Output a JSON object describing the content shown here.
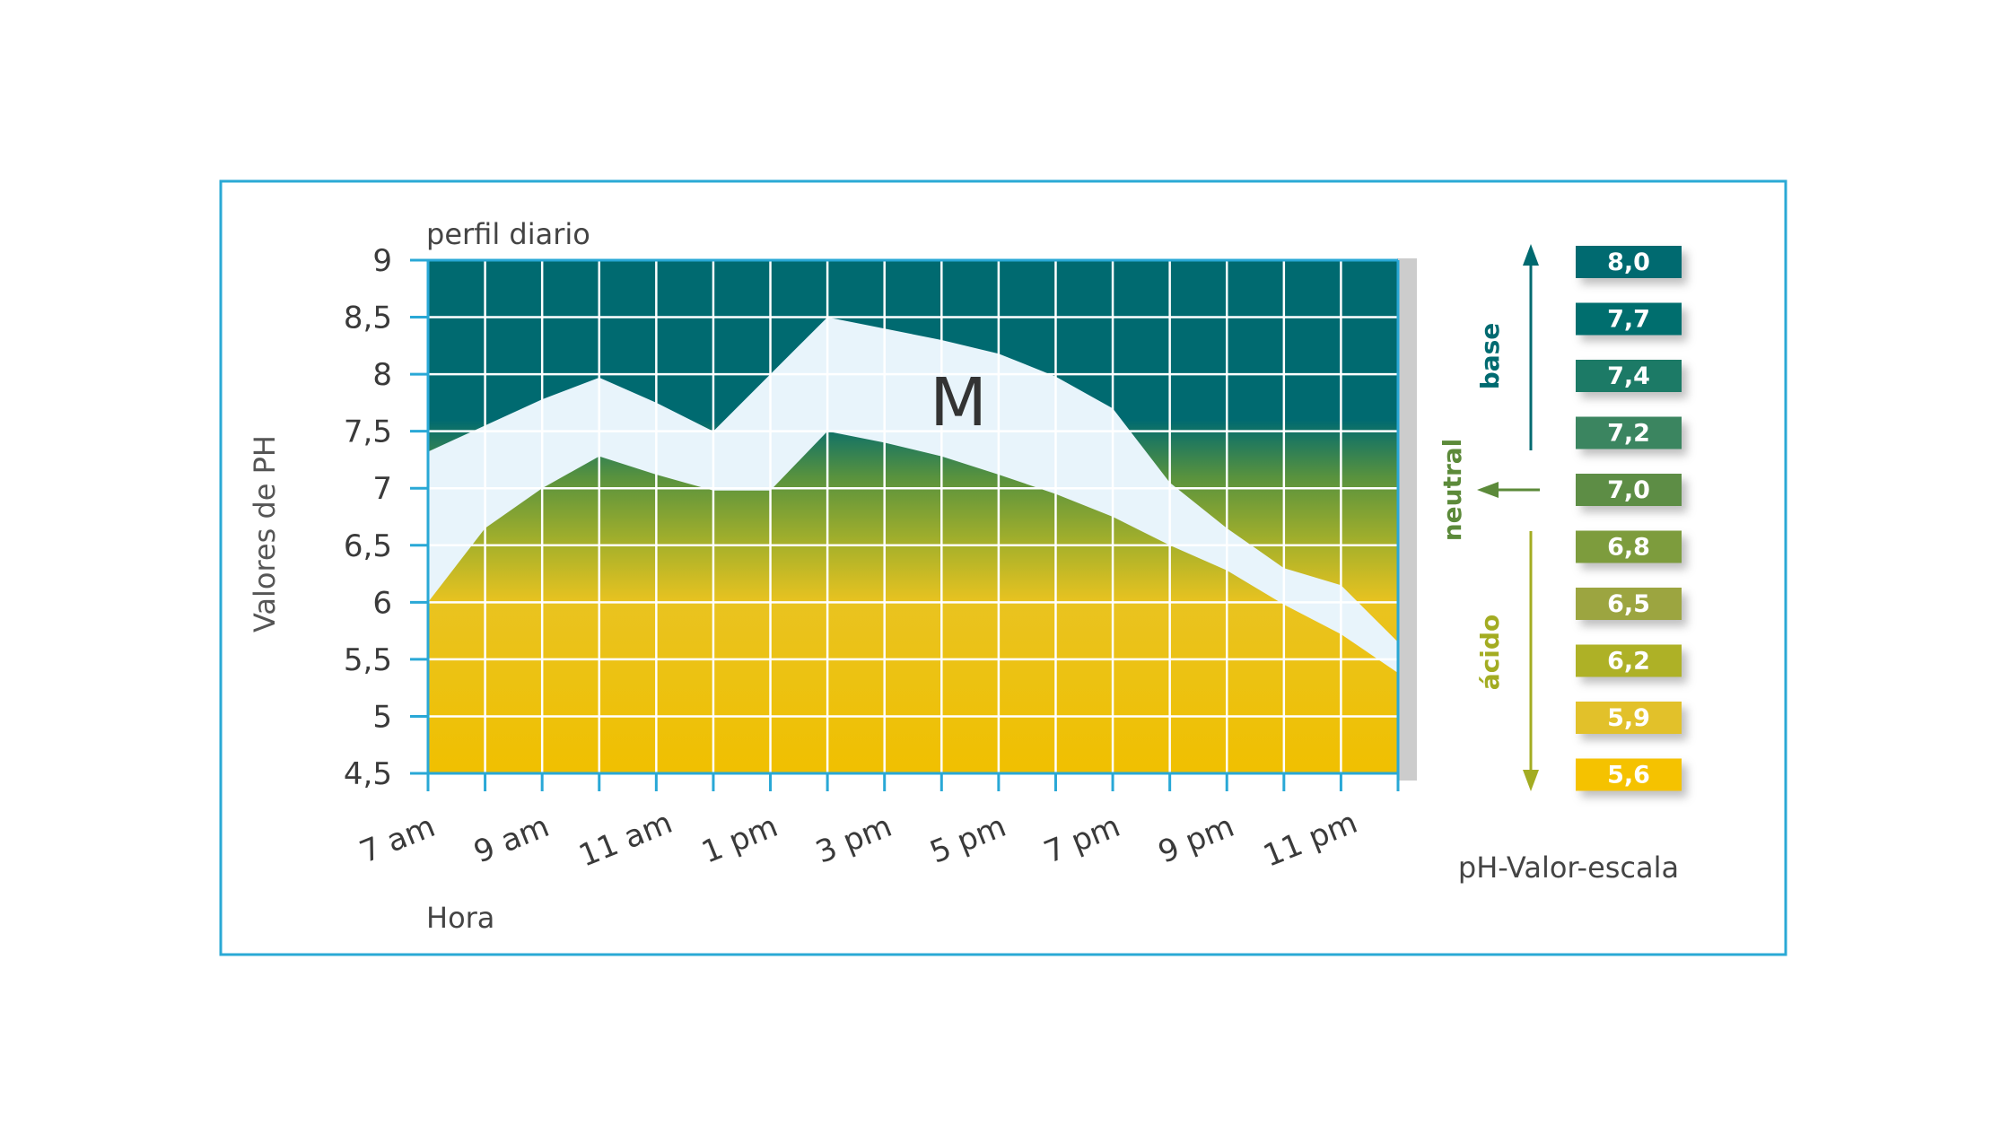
{
  "chart_data": {
    "type": "area",
    "title": "perfil diario",
    "xlabel": "Hora",
    "ylabel": "Valores de PH",
    "ylim": [
      4.5,
      9
    ],
    "yticks": [
      {
        "value": 9,
        "label": "9"
      },
      {
        "value": 8.5,
        "label": "8,5"
      },
      {
        "value": 8,
        "label": "8"
      },
      {
        "value": 7.5,
        "label": "7,5"
      },
      {
        "value": 7,
        "label": "7"
      },
      {
        "value": 6.5,
        "label": "6,5"
      },
      {
        "value": 6,
        "label": "6"
      },
      {
        "value": 5.5,
        "label": "5,5"
      },
      {
        "value": 5,
        "label": "5"
      },
      {
        "value": 4.5,
        "label": "4,5"
      }
    ],
    "x_hours": [
      7,
      8,
      9,
      10,
      11,
      12,
      13,
      14,
      15,
      16,
      17,
      18,
      19,
      20,
      21,
      22,
      23,
      24
    ],
    "xticks": [
      {
        "hour": 7,
        "label": "7 am"
      },
      {
        "hour": 9,
        "label": "9 am"
      },
      {
        "hour": 11,
        "label": "11 am"
      },
      {
        "hour": 13,
        "label": "1 pm"
      },
      {
        "hour": 15,
        "label": "3 pm"
      },
      {
        "hour": 17,
        "label": "5 pm"
      },
      {
        "hour": 19,
        "label": "7 pm"
      },
      {
        "hour": 21,
        "label": "9 pm"
      },
      {
        "hour": 23,
        "label": "11 pm"
      }
    ],
    "band_label": "M",
    "band_upper": [
      7.32,
      7.55,
      7.78,
      7.97,
      7.75,
      7.5,
      8.0,
      8.5,
      8.4,
      8.3,
      8.18,
      7.98,
      7.7,
      7.05,
      6.65,
      6.3,
      6.15,
      5.65
    ],
    "band_lower": [
      6.0,
      6.65,
      7.0,
      7.28,
      7.12,
      6.98,
      6.98,
      7.5,
      7.4,
      7.28,
      7.12,
      6.95,
      6.75,
      6.5,
      6.28,
      5.98,
      5.72,
      5.38
    ],
    "background_gradient": [
      {
        "value": 9,
        "color": "#006a70"
      },
      {
        "value": 7.6,
        "color": "#006a70"
      },
      {
        "value": 7.1,
        "color": "#58923e"
      },
      {
        "value": 6.5,
        "color": "#a8b12a"
      },
      {
        "value": 6.0,
        "color": "#e9c320"
      },
      {
        "value": 4.5,
        "color": "#f0c000"
      }
    ],
    "band_color": "#e8f4fb",
    "grid_color": "#ffffff",
    "axis_color": "#29a8d6",
    "grid": true
  },
  "scale": {
    "title": "pH-Valor-escala",
    "label_base": "base",
    "label_neutral": "neutral",
    "label_acid": "ácido",
    "base_color": "#006a70",
    "neutral_color": "#5c8a3a",
    "acid_color": "#a3ac22",
    "items": [
      {
        "label": "8,0",
        "color": "#006a70"
      },
      {
        "label": "7,7",
        "color": "#006e6e"
      },
      {
        "label": "7,4",
        "color": "#1c7a66"
      },
      {
        "label": "7,2",
        "color": "#3a8560"
      },
      {
        "label": "7,0",
        "color": "#5d8d45"
      },
      {
        "label": "6,8",
        "color": "#7d9c3e"
      },
      {
        "label": "6,5",
        "color": "#9ca53f"
      },
      {
        "label": "6,2",
        "color": "#aeb126"
      },
      {
        "label": "5,9",
        "color": "#e2c12c"
      },
      {
        "label": "5,6",
        "color": "#f5c200"
      }
    ]
  },
  "frame_color": "#2aa9d5"
}
